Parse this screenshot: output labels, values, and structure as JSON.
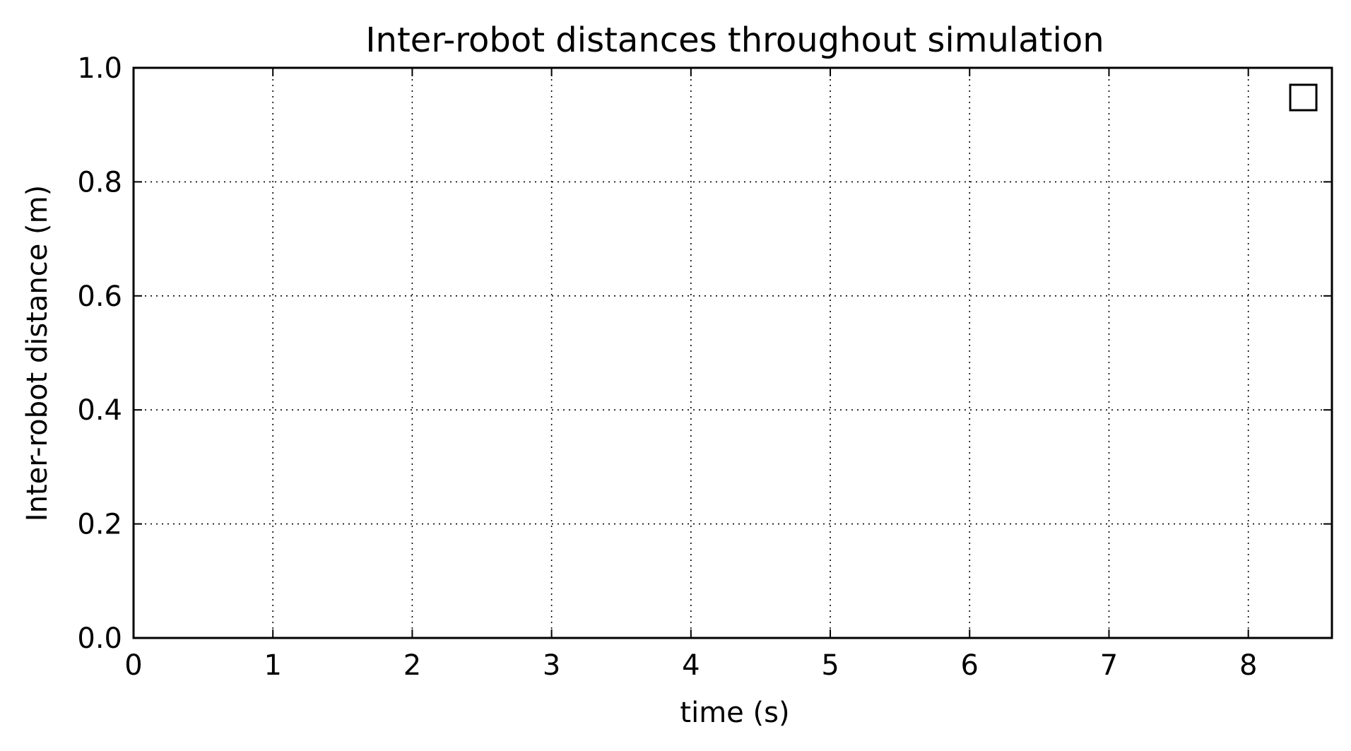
{
  "chart_data": {
    "type": "line",
    "title": "Inter-robot distances throughout simulation",
    "xlabel": "time (s)",
    "ylabel": "Inter-robot distance (m)",
    "xlim": [
      0,
      8.6
    ],
    "ylim": [
      0.0,
      1.0
    ],
    "x_ticks": [
      "0",
      "1",
      "2",
      "3",
      "4",
      "5",
      "6",
      "7",
      "8"
    ],
    "y_ticks": [
      "0.0",
      "0.2",
      "0.4",
      "0.6",
      "0.8",
      "1.0"
    ],
    "grid": true,
    "grid_style": "dotted",
    "legend_position": "top-right",
    "legend_entries": [
      {
        "label": "",
        "color": "#000000"
      }
    ],
    "series": []
  }
}
